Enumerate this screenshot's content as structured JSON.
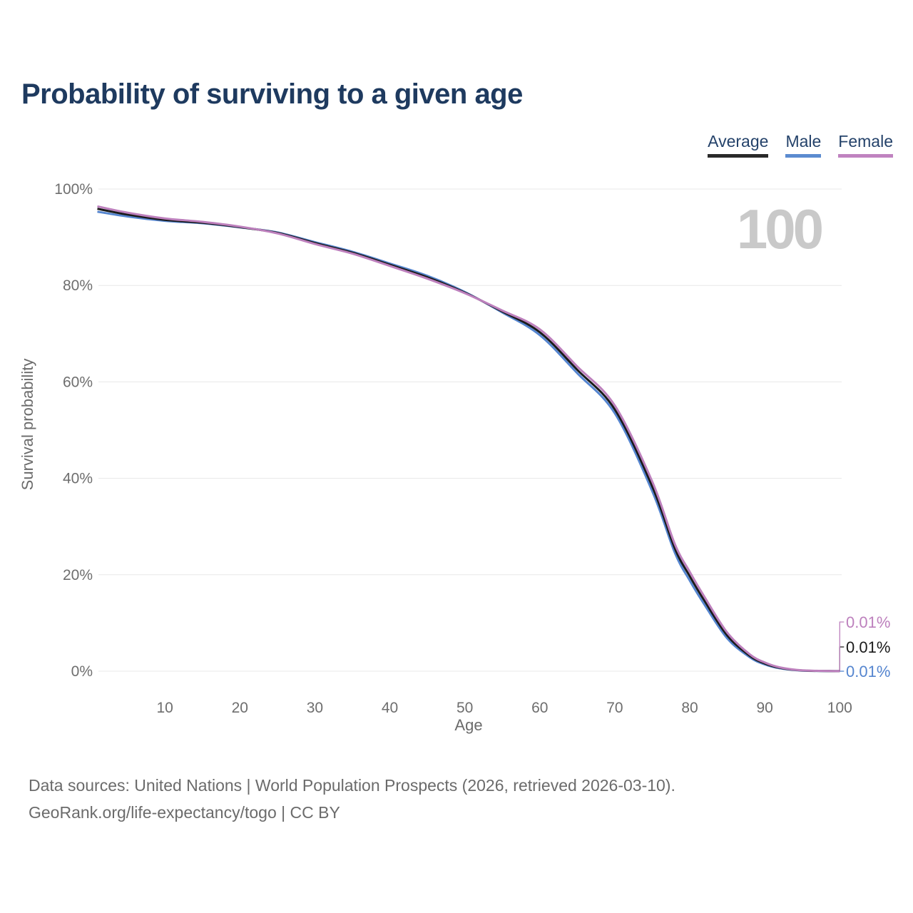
{
  "page": {
    "title": "Probability of surviving to a given age",
    "watermark": "100",
    "footer_line1": "Data sources: United Nations | World Population Prospects (2026, retrieved 2026-03-10).",
    "footer_line2": "GeoRank.org/life-expectancy/togo | CC BY"
  },
  "legend": {
    "items": [
      {
        "label": "Average",
        "color": "#2a2a2a"
      },
      {
        "label": "Male",
        "color": "#5b8bd0"
      },
      {
        "label": "Female",
        "color": "#c083c0"
      }
    ]
  },
  "chart_data": {
    "type": "line",
    "title": "Probability of surviving to a given age",
    "xlabel": "Age",
    "ylabel": "Survival probability",
    "xlim": [
      1,
      100
    ],
    "ylim": [
      0,
      100
    ],
    "grid": "horizontal-only",
    "gridline_color": "#e8e8e8",
    "tick_text_color": "#6e6e6e",
    "xticks": [
      10,
      20,
      30,
      40,
      50,
      60,
      70,
      80,
      90,
      100
    ],
    "yticks": [
      {
        "value": 0,
        "label": "0%"
      },
      {
        "value": 20,
        "label": "20%"
      },
      {
        "value": 40,
        "label": "40%"
      },
      {
        "value": 60,
        "label": "60%"
      },
      {
        "value": 80,
        "label": "80%"
      },
      {
        "value": 100,
        "label": "100%"
      }
    ],
    "x": [
      1,
      5,
      10,
      15,
      20,
      25,
      30,
      35,
      40,
      45,
      50,
      55,
      60,
      65,
      70,
      75,
      78,
      80,
      82,
      85,
      88,
      90,
      92,
      95,
      100
    ],
    "series": [
      {
        "name": "Male",
        "color": "#5585cf",
        "end_label": "0.01%",
        "values": [
          95.3,
          94.3,
          93.4,
          92.9,
          92.05,
          91.0,
          89.0,
          87.0,
          84.55,
          82.0,
          78.65,
          74.4,
          69.7,
          61.8,
          53.5,
          37.3,
          24.6,
          18.8,
          13.7,
          6.8,
          2.9,
          1.4,
          0.6,
          0.12,
          0.01
        ]
      },
      {
        "name": "Average",
        "color": "#1a1a1a",
        "end_label": "0.01%",
        "values": [
          95.9,
          94.7,
          93.6,
          93.0,
          92.1,
          90.9,
          88.8,
          86.8,
          84.3,
          81.7,
          78.5,
          74.6,
          70.3,
          62.5,
          54.3,
          38.3,
          25.5,
          19.7,
          14.5,
          7.4,
          3.2,
          1.6,
          0.7,
          0.15,
          0.01
        ]
      },
      {
        "name": "Female",
        "color": "#bd80bd",
        "end_label": "0.01%",
        "values": [
          96.4,
          95.1,
          93.9,
          93.2,
          92.2,
          90.8,
          88.6,
          86.6,
          84.05,
          81.4,
          78.4,
          74.8,
          70.9,
          63.2,
          55.1,
          39.3,
          26.4,
          20.6,
          15.3,
          8.0,
          3.5,
          1.8,
          0.8,
          0.18,
          0.01
        ]
      }
    ],
    "watermark": "100"
  }
}
